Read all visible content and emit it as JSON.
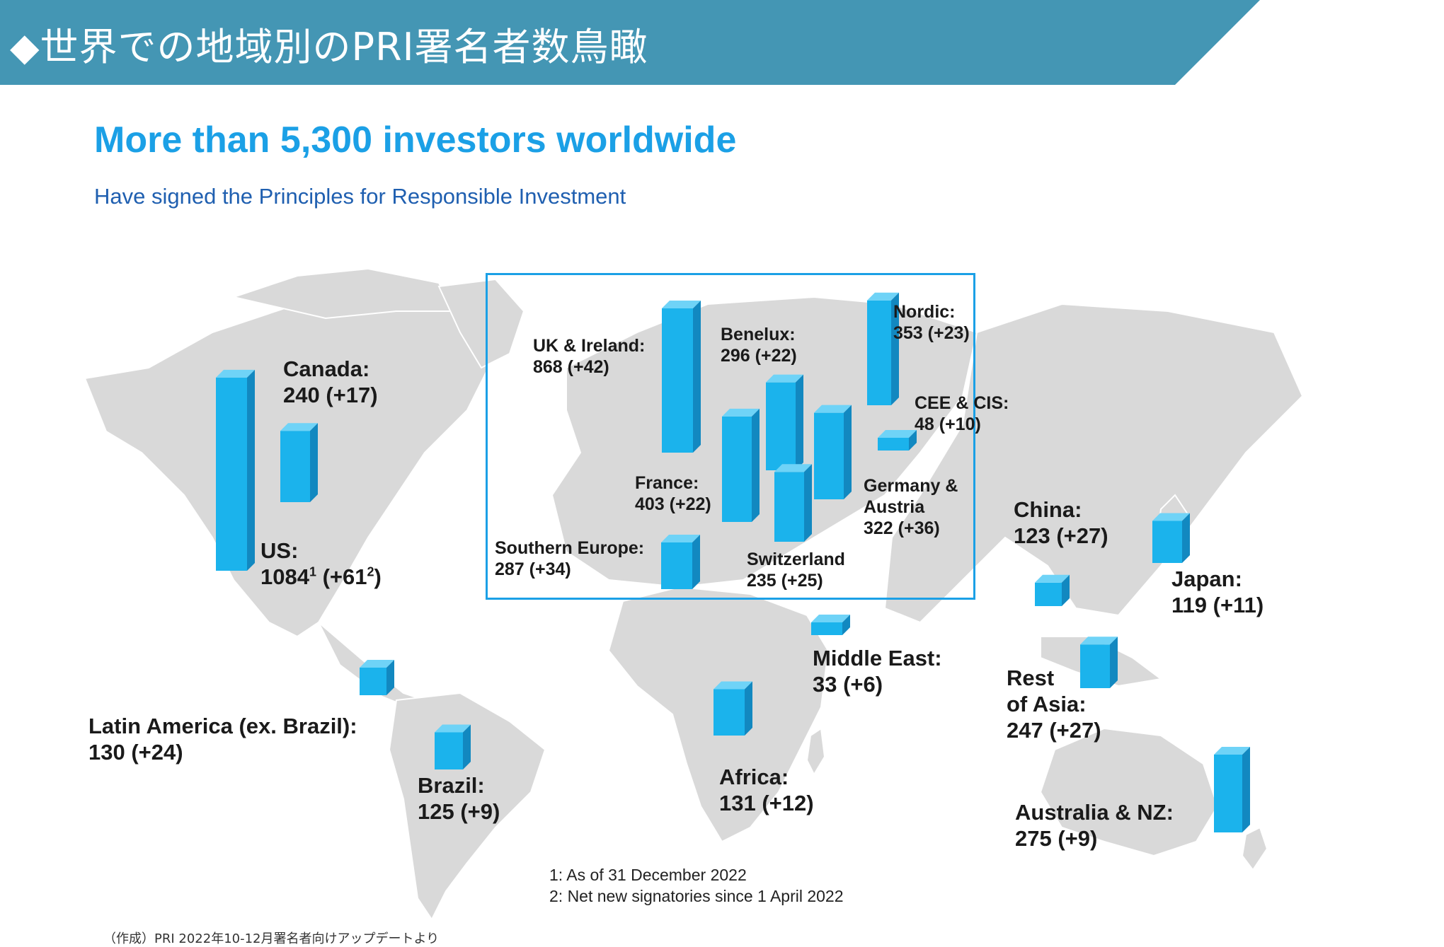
{
  "banner": {
    "title": "◆世界での地域別のPRI署名者数鳥瞰",
    "color": "#4496b4"
  },
  "headline": "More than 5,300 investors worldwide",
  "subheadline": "Have signed the Principles for Responsible Investment",
  "colors": {
    "bar_front": "#1bb3ec",
    "bar_top": "#6fd3f7",
    "bar_side": "#1288c0",
    "land": "#d9d9d9",
    "frame": "#1ba0e6"
  },
  "regions": [
    {
      "id": "canada",
      "name": "Canada:",
      "value": "240 (+17)",
      "signatories": 240
    },
    {
      "id": "us",
      "name": "US:",
      "value_main": "1084",
      "value_sup1": "1",
      "value_mid": " (+61",
      "value_sup2": "2",
      "value_end": ")",
      "signatories": 1084
    },
    {
      "id": "latam",
      "name": "Latin America (ex. Brazil):",
      "value": "130 (+24)",
      "signatories": 130
    },
    {
      "id": "brazil",
      "name": "Brazil:",
      "value": "125 (+9)",
      "signatories": 125
    },
    {
      "id": "uk",
      "name": "UK & Ireland:",
      "value": "868 (+42)",
      "signatories": 868
    },
    {
      "id": "benelux",
      "name": "Benelux:",
      "value": "296 (+22)",
      "signatories": 296
    },
    {
      "id": "nordic",
      "name": "Nordic:",
      "value": "353 (+23)",
      "signatories": 353
    },
    {
      "id": "cee",
      "name": "CEE & CIS:",
      "value": "48 (+10)",
      "signatories": 48
    },
    {
      "id": "france",
      "name": "France:",
      "value": "403 (+22)",
      "signatories": 403
    },
    {
      "id": "germany",
      "name_line1": "Germany &",
      "name_line2": "Austria",
      "value": "322 (+36)",
      "signatories": 322
    },
    {
      "id": "southern",
      "name": "Southern Europe:",
      "value": "287 (+34)",
      "signatories": 287
    },
    {
      "id": "switzerland",
      "name": "Switzerland",
      "value": "235 (+25)",
      "signatories": 235
    },
    {
      "id": "middleeast",
      "name": "Middle East:",
      "value": "33 (+6)",
      "signatories": 33
    },
    {
      "id": "africa",
      "name": "Africa:",
      "value": "131 (+12)",
      "signatories": 131
    },
    {
      "id": "china",
      "name": "China:",
      "value": "123 (+27)",
      "signatories": 123
    },
    {
      "id": "japan",
      "name": "Japan:",
      "value": "119 (+11)",
      "signatories": 119
    },
    {
      "id": "restasia",
      "name_line1": "Rest",
      "name_line2": "of Asia:",
      "value": "247 (+27)",
      "signatories": 247
    },
    {
      "id": "australia",
      "name": "Australia & NZ:",
      "value": "275 (+9)",
      "signatories": 275
    }
  ],
  "footnotes": [
    "1: As of 31 December 2022",
    "2: Net new signatories since 1 April 2022"
  ],
  "source": "（作成）PRI 2022年10-12月署名者向けアップデートより"
}
